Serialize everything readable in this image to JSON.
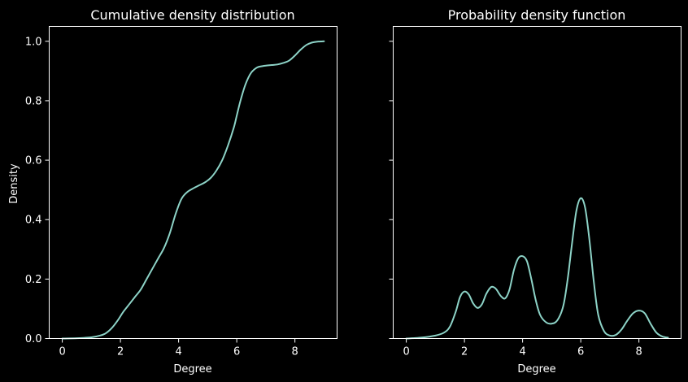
{
  "figure": {
    "background": "#000000",
    "foreground": "#ffffff",
    "line_color": "#8dd3c7"
  },
  "chart_data": [
    {
      "type": "line",
      "title": "Cumulative density distribution",
      "xlabel": "Degree",
      "ylabel": "Density",
      "xlim": [
        -0.45,
        9.45
      ],
      "ylim": [
        0,
        1.05
      ],
      "xticks": [
        0,
        2,
        4,
        6,
        8
      ],
      "yticks": [
        0.0,
        0.2,
        0.4,
        0.6,
        0.8,
        1.0
      ],
      "xtick_labels": [
        "0",
        "2",
        "4",
        "6",
        "8"
      ],
      "ytick_labels": [
        "0.0",
        "0.2",
        "0.4",
        "0.6",
        "0.8",
        "1.0"
      ],
      "grid": false,
      "series": [
        {
          "x": [
            0,
            0.5,
            1.0,
            1.3,
            1.5,
            1.7,
            1.9,
            2.1,
            2.3,
            2.5,
            2.7,
            2.9,
            3.1,
            3.3,
            3.5,
            3.7,
            3.9,
            4.1,
            4.3,
            4.5,
            4.7,
            4.9,
            5.1,
            5.3,
            5.5,
            5.7,
            5.9,
            6.0,
            6.1,
            6.2,
            6.3,
            6.4,
            6.5,
            6.6,
            6.7,
            6.8,
            7.0,
            7.2,
            7.4,
            7.6,
            7.8,
            8.0,
            8.2,
            8.4,
            8.6,
            8.8,
            9.0
          ],
          "y": [
            0.0,
            0.001,
            0.004,
            0.01,
            0.018,
            0.035,
            0.06,
            0.09,
            0.115,
            0.14,
            0.165,
            0.2,
            0.235,
            0.27,
            0.305,
            0.355,
            0.42,
            0.47,
            0.493,
            0.505,
            0.515,
            0.525,
            0.54,
            0.565,
            0.6,
            0.65,
            0.71,
            0.75,
            0.79,
            0.825,
            0.855,
            0.878,
            0.895,
            0.905,
            0.912,
            0.915,
            0.918,
            0.92,
            0.922,
            0.927,
            0.935,
            0.952,
            0.972,
            0.988,
            0.996,
            0.999,
            1.0
          ]
        }
      ]
    },
    {
      "type": "line",
      "title": "Probability density function",
      "xlabel": "Degree",
      "ylabel": "",
      "xlim": [
        -0.45,
        9.45
      ],
      "ylim": [
        0,
        1.05
      ],
      "xticks": [
        0,
        2,
        4,
        6,
        8
      ],
      "yticks": [
        0.0,
        0.2,
        0.4,
        0.6,
        0.8,
        1.0
      ],
      "xtick_labels": [
        "0",
        "2",
        "4",
        "6",
        "8"
      ],
      "ytick_labels": [],
      "grid": false,
      "series": [
        {
          "x": [
            0,
            0.5,
            1.0,
            1.3,
            1.5,
            1.7,
            1.85,
            2.0,
            2.15,
            2.3,
            2.45,
            2.6,
            2.75,
            2.9,
            3.0,
            3.1,
            3.25,
            3.4,
            3.55,
            3.7,
            3.85,
            4.0,
            4.15,
            4.3,
            4.45,
            4.6,
            4.8,
            5.0,
            5.2,
            5.4,
            5.55,
            5.7,
            5.85,
            6.0,
            6.15,
            6.3,
            6.45,
            6.6,
            6.8,
            7.0,
            7.2,
            7.4,
            7.6,
            7.8,
            8.0,
            8.2,
            8.4,
            8.6,
            8.8,
            9.0
          ],
          "y": [
            0.0,
            0.003,
            0.01,
            0.02,
            0.04,
            0.09,
            0.14,
            0.158,
            0.148,
            0.118,
            0.103,
            0.115,
            0.15,
            0.172,
            0.173,
            0.165,
            0.143,
            0.135,
            0.165,
            0.23,
            0.27,
            0.277,
            0.26,
            0.2,
            0.13,
            0.08,
            0.055,
            0.05,
            0.062,
            0.11,
            0.2,
            0.32,
            0.43,
            0.472,
            0.44,
            0.33,
            0.19,
            0.08,
            0.025,
            0.01,
            0.012,
            0.03,
            0.06,
            0.085,
            0.094,
            0.085,
            0.05,
            0.02,
            0.007,
            0.003
          ]
        }
      ]
    }
  ]
}
